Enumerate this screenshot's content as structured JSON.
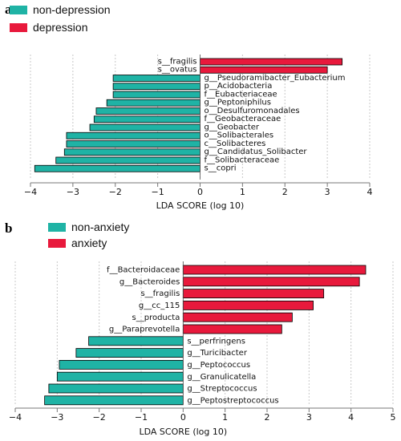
{
  "chart_data": [
    {
      "type": "bar",
      "orientation": "horizontal",
      "panel_label": "a",
      "legend": [
        {
          "label": "non-depression",
          "color": "#1fb3a5"
        },
        {
          "label": "depression",
          "color": "#e8193c"
        }
      ],
      "xlabel": "LDA SCORE (log 10)",
      "xlim": [
        -4,
        4
      ],
      "xticks": [
        "−4",
        "−3",
        "−2",
        "−1",
        "0",
        "1",
        "2",
        "3",
        "4"
      ],
      "bars": [
        {
          "label": "s__fragilis",
          "value": 3.35,
          "group": "depression"
        },
        {
          "label": "s__ovatus",
          "value": 3.0,
          "group": "depression"
        },
        {
          "label": "g__Pseudoramibacter_Eubacterium",
          "value": -2.05,
          "group": "non-depression"
        },
        {
          "label": "p__Acidobacteria",
          "value": -2.05,
          "group": "non-depression"
        },
        {
          "label": "f__Eubacteriaceae",
          "value": -2.05,
          "group": "non-depression"
        },
        {
          "label": "g__Peptoniphilus",
          "value": -2.2,
          "group": "non-depression"
        },
        {
          "label": "o__Desulfuromonadales",
          "value": -2.45,
          "group": "non-depression"
        },
        {
          "label": "f__Geobacteraceae",
          "value": -2.5,
          "group": "non-depression"
        },
        {
          "label": "g__Geobacter",
          "value": -2.6,
          "group": "non-depression"
        },
        {
          "label": "o__Solibacterales",
          "value": -3.15,
          "group": "non-depression"
        },
        {
          "label": "c__Solibacteres",
          "value": -3.15,
          "group": "non-depression"
        },
        {
          "label": "g__Candidatus_Solibacter",
          "value": -3.2,
          "group": "non-depression"
        },
        {
          "label": "f__Solibacteraceae",
          "value": -3.4,
          "group": "non-depression"
        },
        {
          "label": "s__copri",
          "value": -3.9,
          "group": "non-depression"
        }
      ]
    },
    {
      "type": "bar",
      "orientation": "horizontal",
      "panel_label": "b",
      "legend": [
        {
          "label": "non-anxiety",
          "color": "#1fb3a5"
        },
        {
          "label": "anxiety",
          "color": "#e8193c"
        }
      ],
      "xlabel": "LDA SCORE (log 10)",
      "xlim": [
        -4,
        5
      ],
      "xticks": [
        "−4",
        "−3",
        "−2",
        "−1",
        "0",
        "1",
        "2",
        "3",
        "4",
        "5"
      ],
      "bars": [
        {
          "label": "f__Bacteroidaceae",
          "value": 4.35,
          "group": "anxiety"
        },
        {
          "label": "g__Bacteroides",
          "value": 4.2,
          "group": "anxiety"
        },
        {
          "label": "s__fragilis",
          "value": 3.35,
          "group": "anxiety"
        },
        {
          "label": "g__cc_115",
          "value": 3.1,
          "group": "anxiety"
        },
        {
          "label": "s__producta",
          "value": 2.6,
          "group": "anxiety"
        },
        {
          "label": "g__Paraprevotella",
          "value": 2.35,
          "group": "anxiety"
        },
        {
          "label": "s__perfringens",
          "value": -2.25,
          "group": "non-anxiety"
        },
        {
          "label": "g__Turicibacter",
          "value": -2.55,
          "group": "non-anxiety"
        },
        {
          "label": "g__Peptococcus",
          "value": -2.95,
          "group": "non-anxiety"
        },
        {
          "label": "g__Granulicatella",
          "value": -3.0,
          "group": "non-anxiety"
        },
        {
          "label": "g__Streptococcus",
          "value": -3.2,
          "group": "non-anxiety"
        },
        {
          "label": "g__Peptostreptococcus",
          "value": -3.3,
          "group": "non-anxiety"
        }
      ]
    }
  ]
}
